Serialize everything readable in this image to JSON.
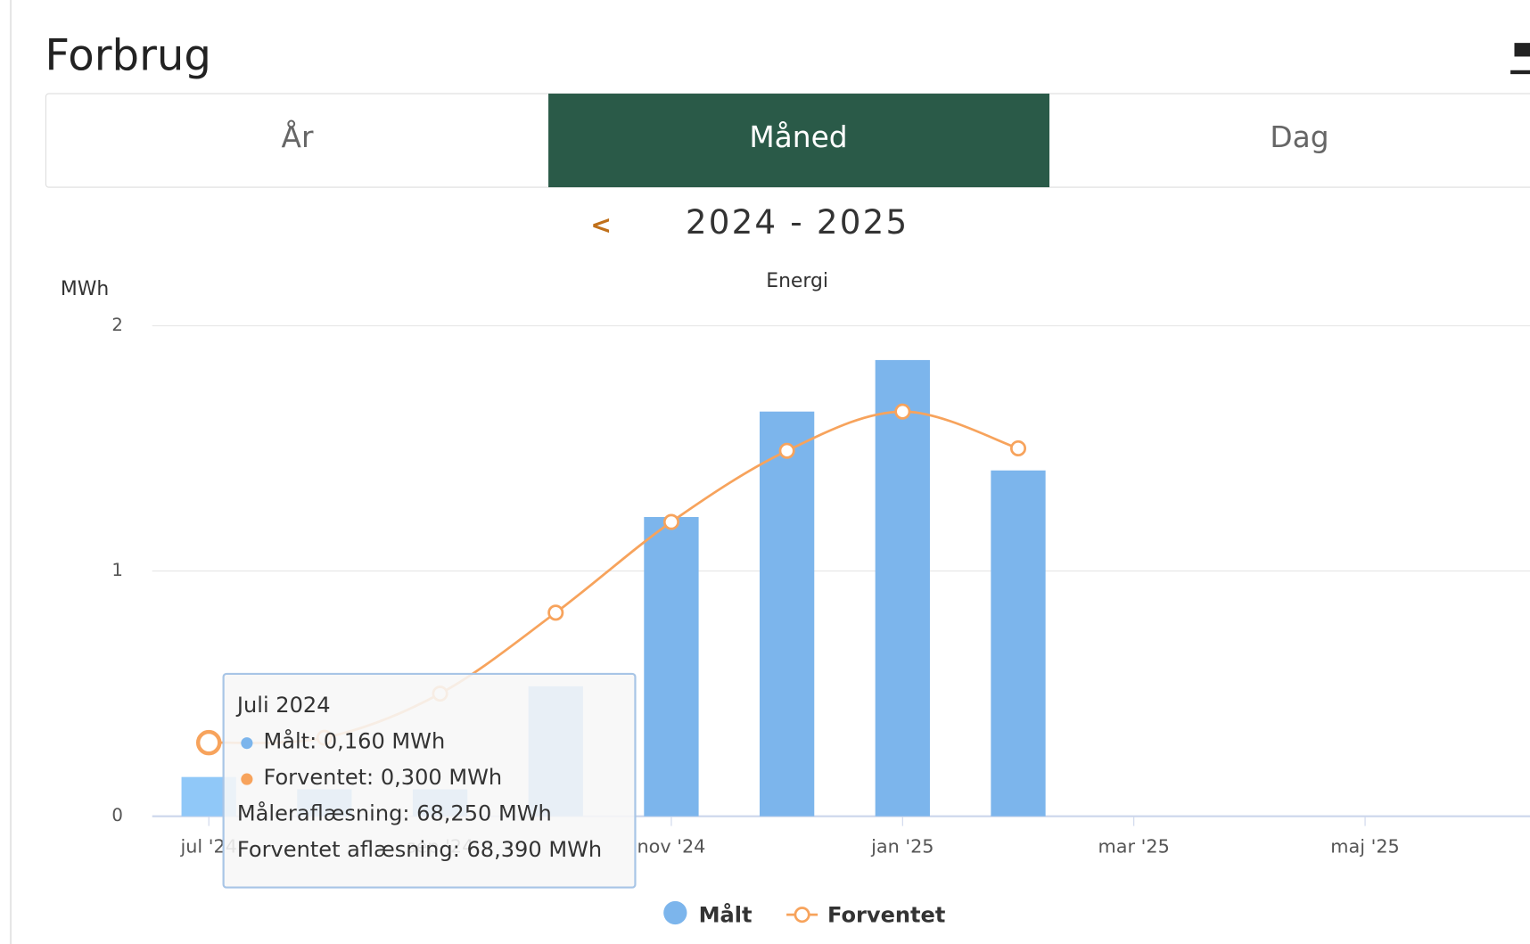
{
  "header": {
    "title": "Forbrug"
  },
  "tabs": [
    "År",
    "Måned",
    "Dag"
  ],
  "active_tab": 1,
  "period": {
    "prev": "<",
    "label": "2024 - 2025"
  },
  "chart_data": {
    "type": "bar_line",
    "title": "Energi",
    "y_label": "MWh",
    "categories": [
      "jul '24",
      null,
      "sep '24",
      null,
      "nov '24",
      null,
      "jan '25",
      null,
      "mar '25",
      null,
      "maj '25",
      null
    ],
    "series": [
      {
        "name": "Målt",
        "type": "bar",
        "color": "#7cb5ec",
        "values": [
          0.16,
          0.11,
          0.11,
          0.53,
          1.22,
          1.65,
          1.86,
          1.41,
          null,
          null,
          null,
          null
        ]
      },
      {
        "name": "Forventet",
        "type": "line",
        "color": "#f7a35c",
        "values": [
          0.3,
          0.32,
          0.5,
          0.83,
          1.2,
          1.49,
          1.65,
          1.5,
          null,
          null,
          null,
          null
        ]
      }
    ],
    "ylim": [
      0,
      2
    ],
    "yticks": [
      0,
      1,
      2
    ],
    "grid": true,
    "tooltip": {
      "title": "Juli 2024",
      "lines": [
        "Målt: 0,160 MWh",
        "Forventet: 0,300 MWh",
        "Måleraflæsning: 68,250 MWh",
        "Forventet aflæsning: 68,390 MWh"
      ]
    }
  }
}
